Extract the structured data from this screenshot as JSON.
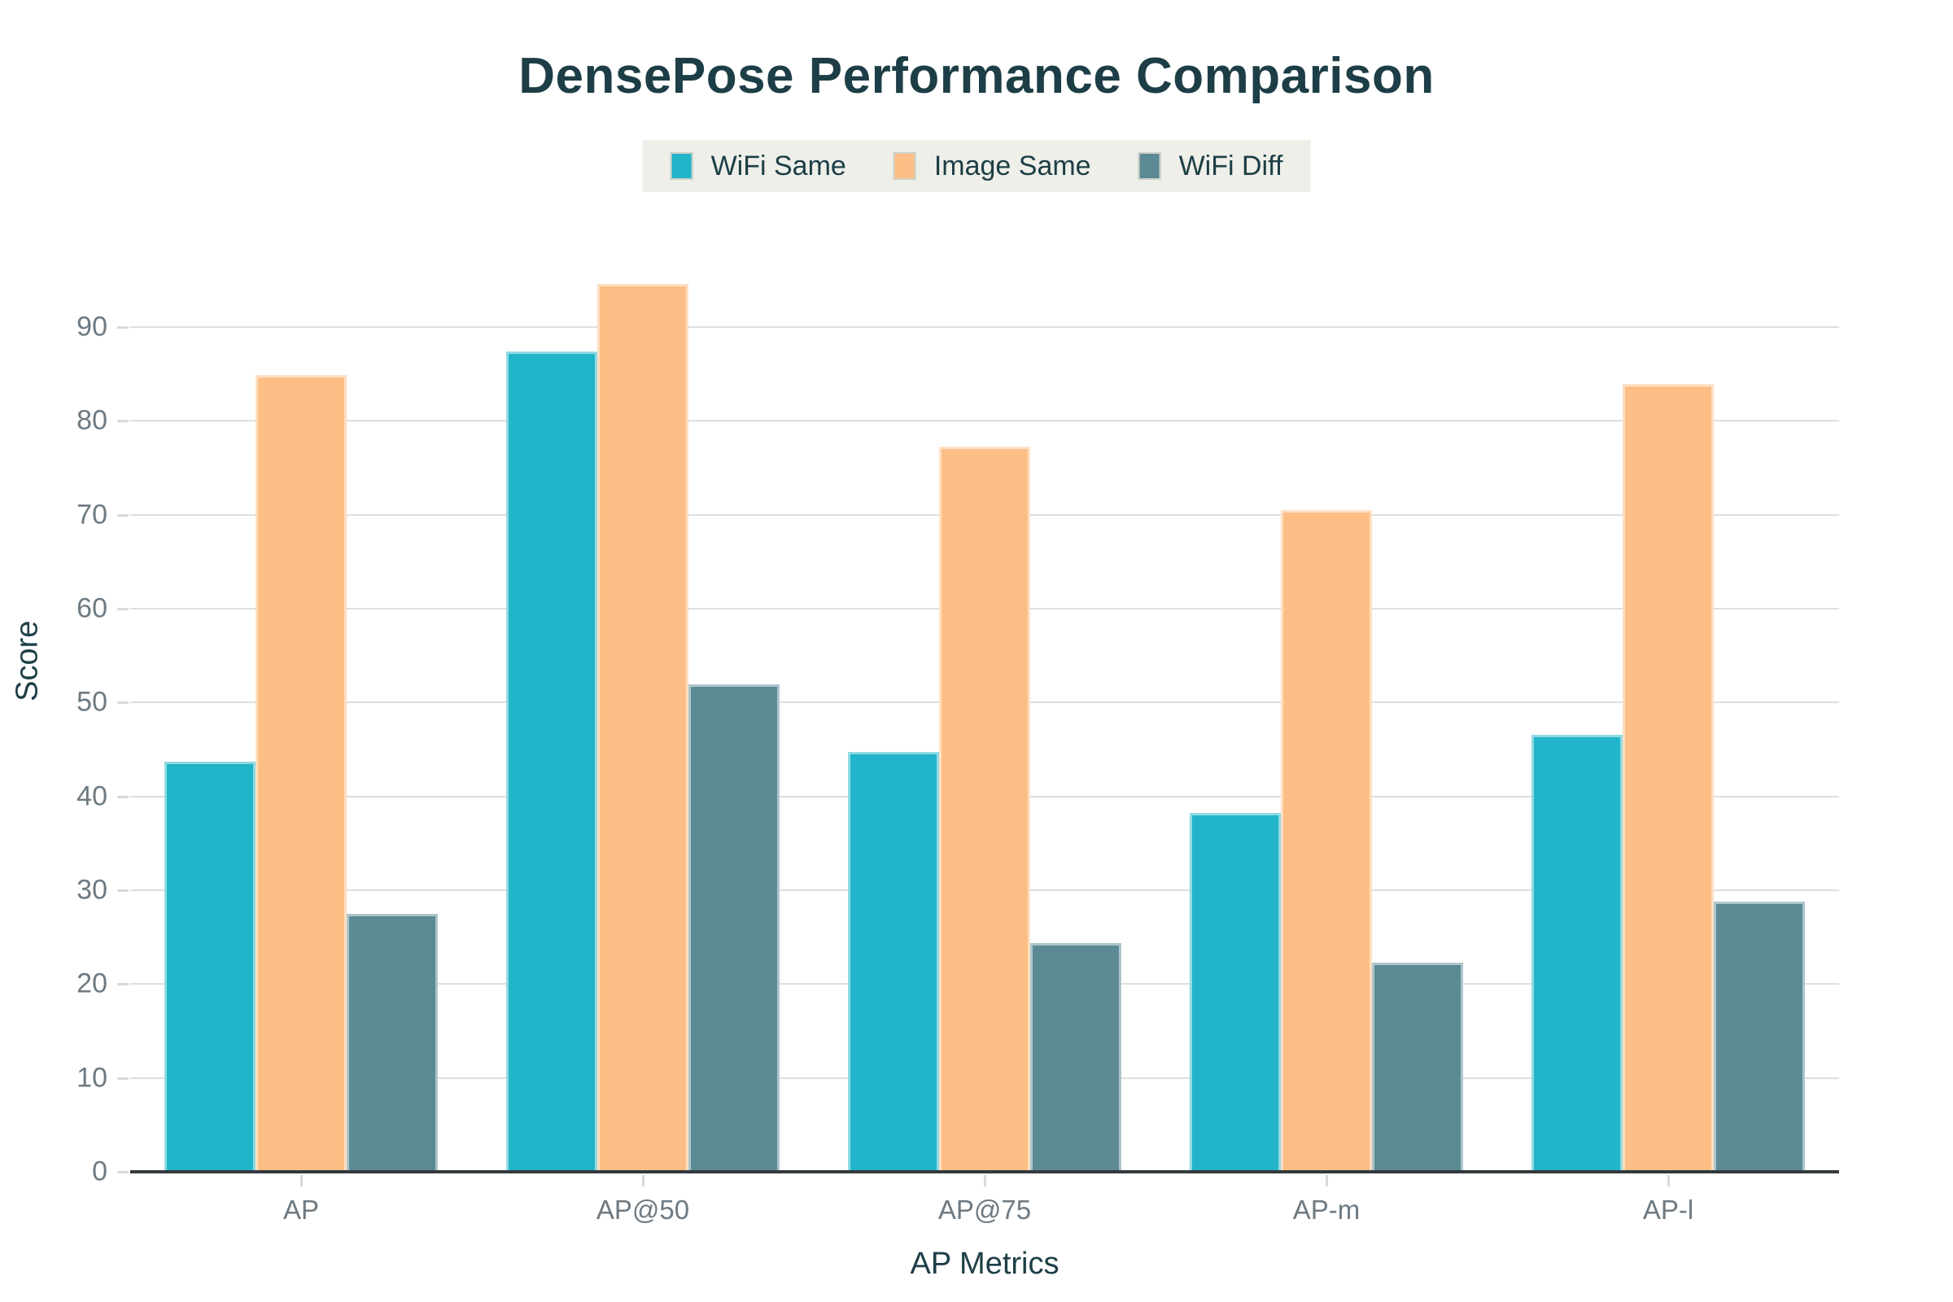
{
  "chart_data": {
    "type": "bar",
    "title": "DensePose Performance Comparison",
    "xlabel": "AP Metrics",
    "ylabel": "Score",
    "categories": [
      "AP",
      "AP@50",
      "AP@75",
      "AP-m",
      "AP-l"
    ],
    "series": [
      {
        "name": "WiFi Same",
        "color": "#22b4c8",
        "values": [
          43.5,
          87.2,
          44.6,
          38.1,
          46.4
        ]
      },
      {
        "name": "Image Same",
        "color": "#fdbe85",
        "values": [
          84.7,
          94.4,
          77.1,
          70.3,
          83.8
        ]
      },
      {
        "name": "WiFi Diff",
        "color": "#5b8a94",
        "values": [
          27.3,
          51.8,
          24.2,
          22.1,
          28.6
        ]
      }
    ],
    "ylim": [
      0,
      96
    ],
    "yticks": [
      0,
      10,
      20,
      30,
      40,
      50,
      60,
      70,
      80,
      90
    ],
    "grid": true,
    "legend_position": "top-center"
  },
  "colors": {
    "title_text": "#1d3e46",
    "tick_text": "#6e7a82",
    "gridline": "#dedede",
    "axis_line": "#33393d",
    "legend_background": "#edefe8",
    "background": "#ffffff"
  }
}
